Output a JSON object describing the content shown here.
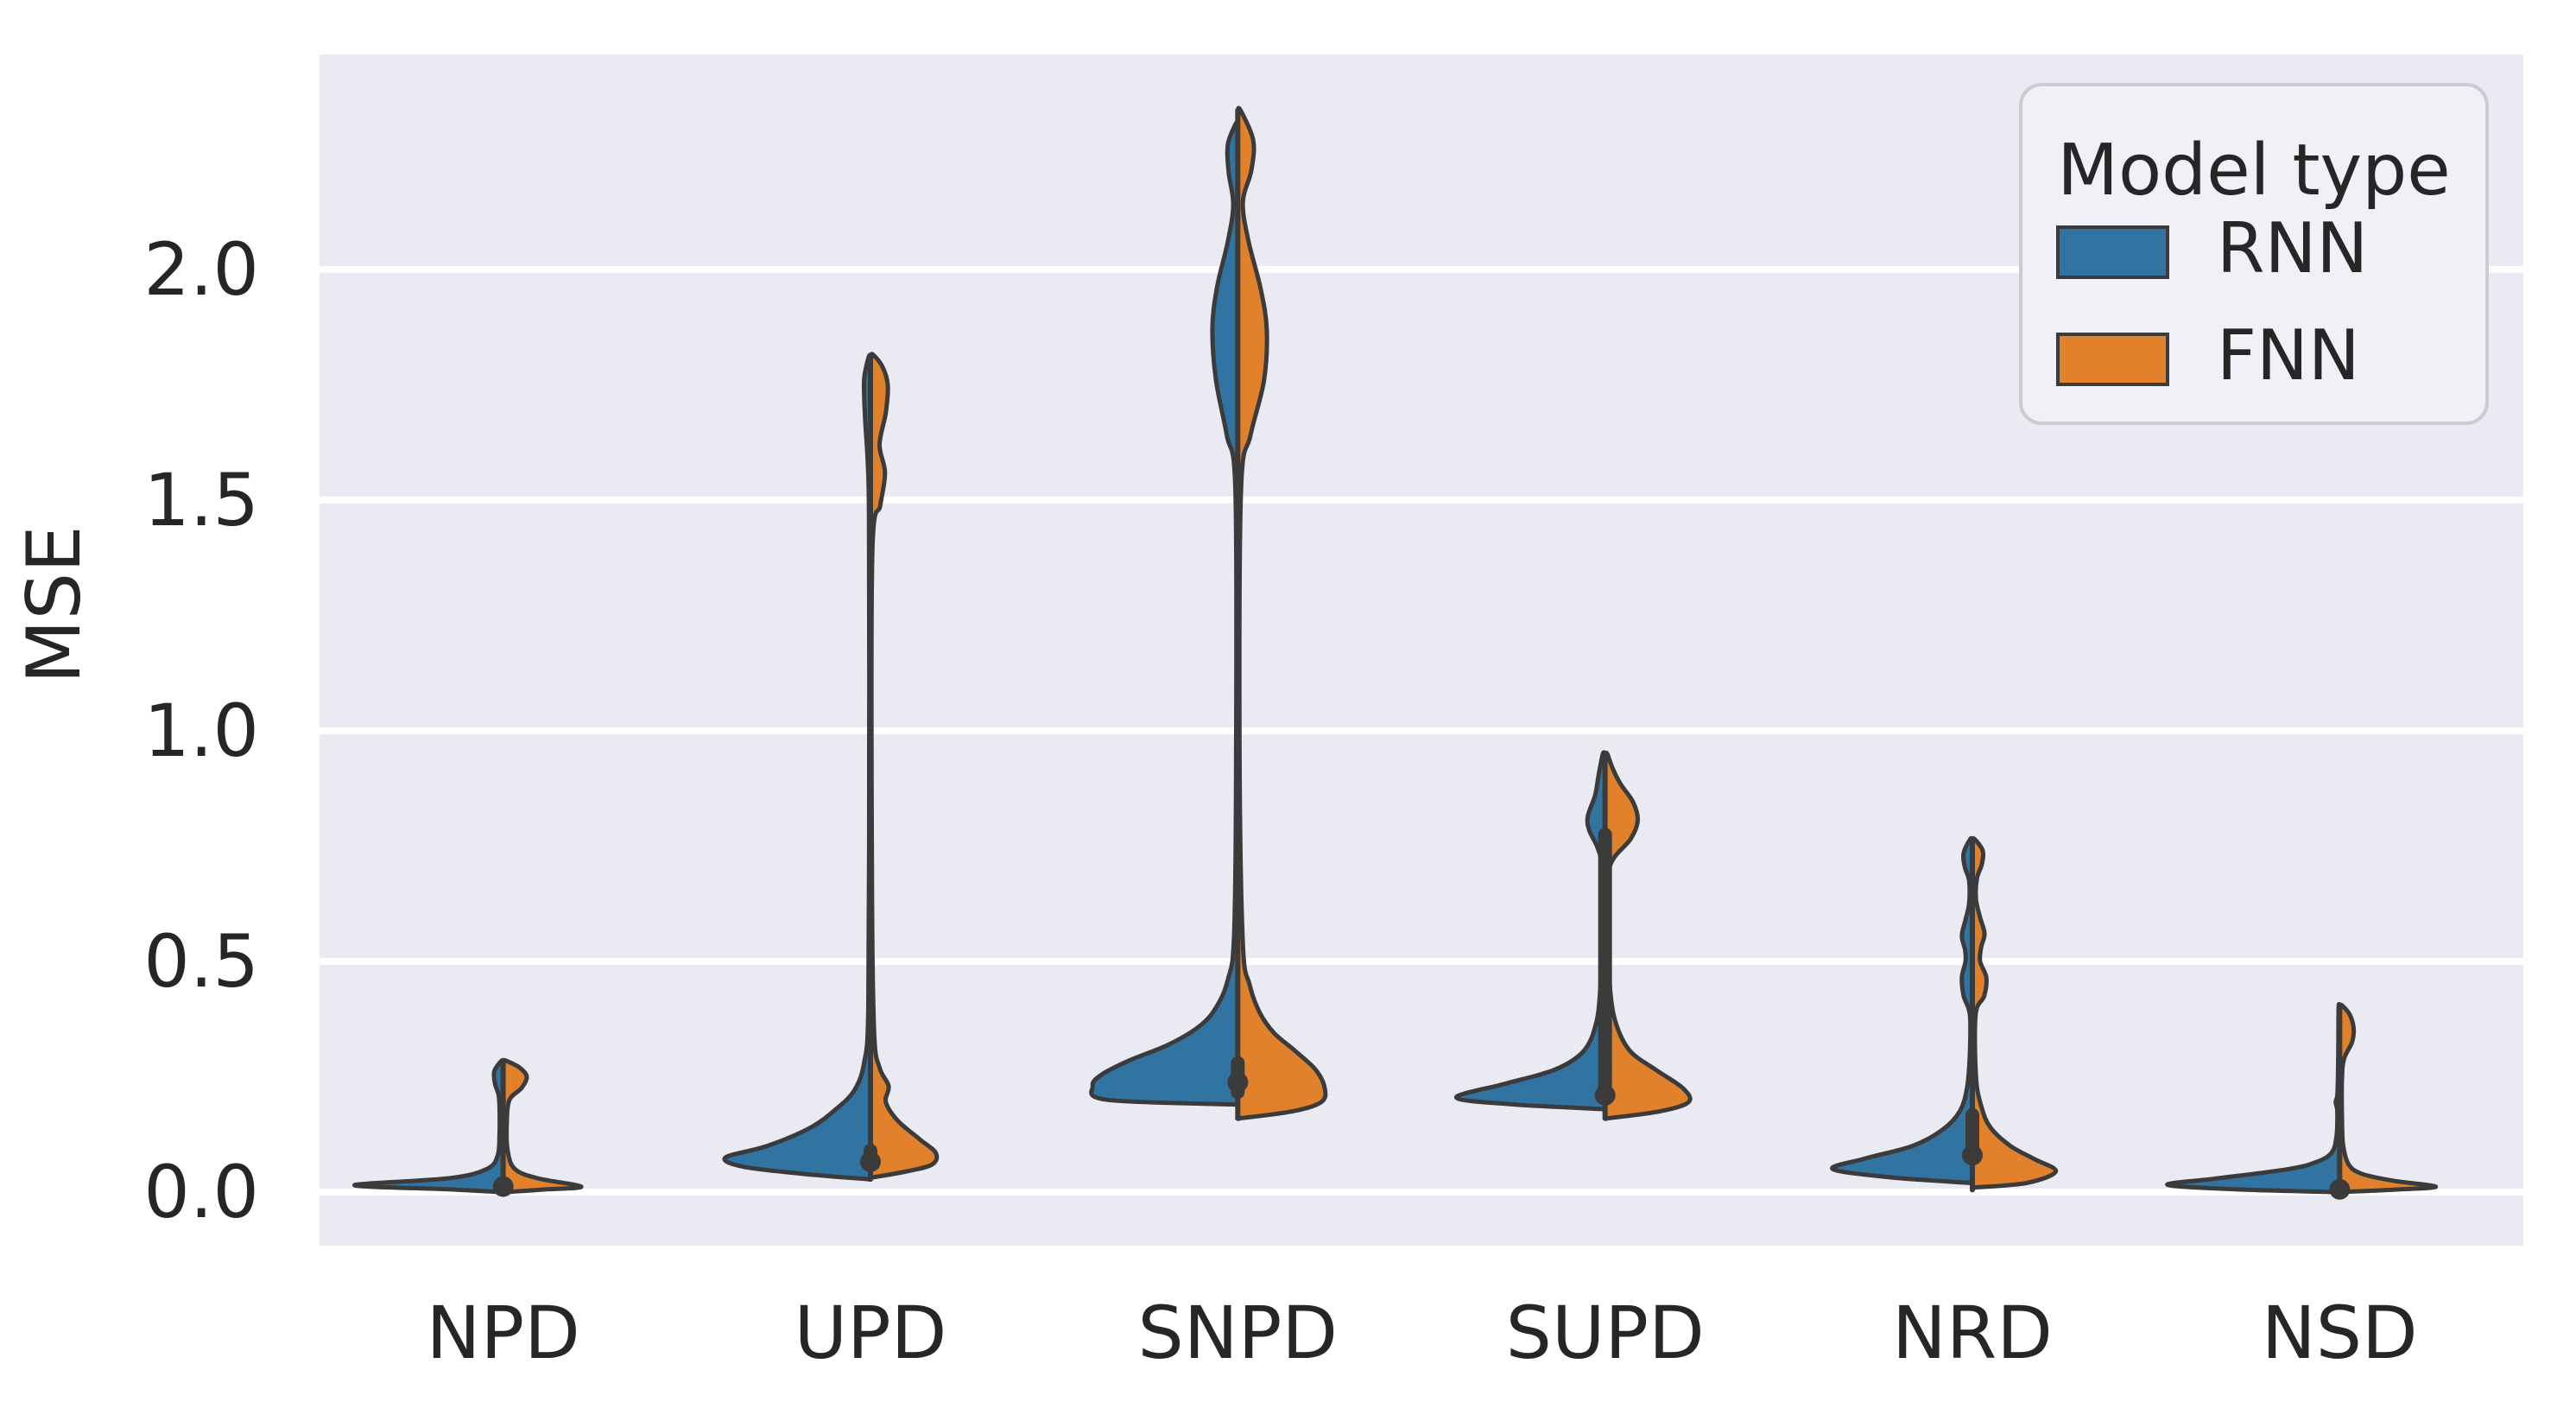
{
  "chart_data": {
    "type": "violin",
    "title": "",
    "xlabel": "",
    "ylabel": "MSE",
    "categories": [
      "NPD",
      "UPD",
      "SNPD",
      "SUPD",
      "NRD",
      "NSD"
    ],
    "ytick_values": [
      0.0,
      0.5,
      1.0,
      1.5,
      2.0
    ],
    "ytick_labels": [
      "0.0",
      "0.5",
      "1.0",
      "1.5",
      "2.0"
    ],
    "ylim": [
      -0.116,
      2.466
    ],
    "grid": true,
    "legend": {
      "title": "Model type",
      "position": "upper right",
      "entries": [
        {
          "label": "RNN",
          "color": "#3274a1"
        },
        {
          "label": "FNN",
          "color": "#e1812c"
        }
      ]
    },
    "series": [
      {
        "name": "RNN",
        "side": "left",
        "color": "#3274a1"
      },
      {
        "name": "FNN",
        "side": "right",
        "color": "#e1812c"
      }
    ],
    "colors": {
      "rnn": "#3274a1",
      "fnn": "#e1812c",
      "edge": "#3b3b3b",
      "axes_background": "#eaeaf2",
      "grid": "#ffffff",
      "text": "#262626",
      "legend_face": "#f0f0f6",
      "legend_border": "#cccccc",
      "figure_background": "#ffffff"
    },
    "violins": [
      {
        "category": "NPD",
        "rnn_profile": [
          [
            0.0,
            0.01
          ],
          [
            0.006,
            0.3
          ],
          [
            0.015,
            0.82
          ],
          [
            0.03,
            0.3
          ],
          [
            0.05,
            0.09
          ],
          [
            0.08,
            0.03
          ],
          [
            0.13,
            0.02
          ],
          [
            0.18,
            0.02
          ],
          [
            0.21,
            0.025
          ],
          [
            0.235,
            0.045
          ],
          [
            0.26,
            0.05
          ],
          [
            0.275,
            0.03
          ],
          [
            0.285,
            0.008
          ]
        ],
        "fnn_profile": [
          [
            0.0,
            0.01
          ],
          [
            0.006,
            0.24
          ],
          [
            0.012,
            0.43
          ],
          [
            0.03,
            0.19
          ],
          [
            0.05,
            0.065
          ],
          [
            0.09,
            0.025
          ],
          [
            0.15,
            0.02
          ],
          [
            0.2,
            0.035
          ],
          [
            0.225,
            0.1
          ],
          [
            0.25,
            0.13
          ],
          [
            0.27,
            0.09
          ],
          [
            0.285,
            0.015
          ]
        ],
        "whisker": [
          0.0,
          0.285
        ],
        "box": [
          0.004,
          0.035
        ],
        "median": 0.012
      },
      {
        "category": "UPD",
        "rnn_profile": [
          [
            0.028,
            0.012
          ],
          [
            0.04,
            0.38
          ],
          [
            0.055,
            0.7
          ],
          [
            0.075,
            0.8
          ],
          [
            0.1,
            0.57
          ],
          [
            0.14,
            0.33
          ],
          [
            0.18,
            0.19
          ],
          [
            0.22,
            0.09
          ],
          [
            0.28,
            0.035
          ],
          [
            0.4,
            0.012
          ],
          [
            0.9,
            0.007
          ],
          [
            1.45,
            0.008
          ],
          [
            1.58,
            0.015
          ],
          [
            1.68,
            0.03
          ],
          [
            1.76,
            0.035
          ],
          [
            1.81,
            0.01
          ]
        ],
        "fnn_profile": [
          [
            0.032,
            0.012
          ],
          [
            0.045,
            0.2
          ],
          [
            0.06,
            0.34
          ],
          [
            0.085,
            0.36
          ],
          [
            0.115,
            0.27
          ],
          [
            0.155,
            0.15
          ],
          [
            0.195,
            0.085
          ],
          [
            0.23,
            0.1
          ],
          [
            0.27,
            0.05
          ],
          [
            0.35,
            0.02
          ],
          [
            0.7,
            0.008
          ],
          [
            1.38,
            0.01
          ],
          [
            1.49,
            0.055
          ],
          [
            1.56,
            0.08
          ],
          [
            1.62,
            0.05
          ],
          [
            1.69,
            0.085
          ],
          [
            1.75,
            0.095
          ],
          [
            1.79,
            0.065
          ],
          [
            1.815,
            0.015
          ]
        ],
        "whisker": [
          0.028,
          1.81
        ],
        "box": [
          0.048,
          0.105
        ],
        "median": 0.066
      },
      {
        "category": "SNPD",
        "rnn_profile": [
          [
            0.19,
            0.012
          ],
          [
            0.2,
            0.72
          ],
          [
            0.23,
            0.8
          ],
          [
            0.255,
            0.75
          ],
          [
            0.285,
            0.6
          ],
          [
            0.32,
            0.38
          ],
          [
            0.36,
            0.21
          ],
          [
            0.4,
            0.12
          ],
          [
            0.46,
            0.055
          ],
          [
            0.56,
            0.02
          ],
          [
            0.95,
            0.009
          ],
          [
            1.52,
            0.013
          ],
          [
            1.64,
            0.06
          ],
          [
            1.76,
            0.12
          ],
          [
            1.87,
            0.14
          ],
          [
            1.96,
            0.115
          ],
          [
            2.06,
            0.055
          ],
          [
            2.14,
            0.025
          ],
          [
            2.21,
            0.05
          ],
          [
            2.27,
            0.055
          ],
          [
            2.315,
            0.012
          ]
        ],
        "fnn_profile": [
          [
            0.16,
            0.012
          ],
          [
            0.175,
            0.3
          ],
          [
            0.195,
            0.46
          ],
          [
            0.225,
            0.48
          ],
          [
            0.265,
            0.43
          ],
          [
            0.305,
            0.32
          ],
          [
            0.345,
            0.2
          ],
          [
            0.39,
            0.12
          ],
          [
            0.45,
            0.065
          ],
          [
            0.54,
            0.028
          ],
          [
            0.95,
            0.01
          ],
          [
            1.52,
            0.018
          ],
          [
            1.64,
            0.07
          ],
          [
            1.76,
            0.145
          ],
          [
            1.87,
            0.16
          ],
          [
            1.96,
            0.125
          ],
          [
            2.06,
            0.06
          ],
          [
            2.145,
            0.028
          ],
          [
            2.215,
            0.075
          ],
          [
            2.28,
            0.085
          ],
          [
            2.345,
            0.015
          ]
        ],
        "whisker": [
          0.16,
          2.345
        ],
        "box": [
          0.202,
          0.295
        ],
        "median": 0.238
      },
      {
        "category": "SUPD",
        "rnn_profile": [
          [
            0.18,
            0.012
          ],
          [
            0.19,
            0.5
          ],
          [
            0.205,
            0.82
          ],
          [
            0.235,
            0.55
          ],
          [
            0.265,
            0.28
          ],
          [
            0.305,
            0.12
          ],
          [
            0.365,
            0.05
          ],
          [
            0.45,
            0.025
          ],
          [
            0.58,
            0.015
          ],
          [
            0.7,
            0.015
          ],
          [
            0.745,
            0.04
          ],
          [
            0.785,
            0.088
          ],
          [
            0.815,
            0.095
          ],
          [
            0.86,
            0.055
          ],
          [
            0.905,
            0.035
          ],
          [
            0.95,
            0.012
          ]
        ],
        "fnn_profile": [
          [
            0.16,
            0.012
          ],
          [
            0.175,
            0.3
          ],
          [
            0.195,
            0.46
          ],
          [
            0.225,
            0.43
          ],
          [
            0.265,
            0.28
          ],
          [
            0.305,
            0.14
          ],
          [
            0.36,
            0.065
          ],
          [
            0.43,
            0.03
          ],
          [
            0.56,
            0.015
          ],
          [
            0.685,
            0.02
          ],
          [
            0.725,
            0.05
          ],
          [
            0.765,
            0.14
          ],
          [
            0.805,
            0.18
          ],
          [
            0.845,
            0.155
          ],
          [
            0.885,
            0.085
          ],
          [
            0.92,
            0.04
          ],
          [
            0.95,
            0.012
          ]
        ],
        "whisker": [
          0.16,
          0.95
        ],
        "box": [
          0.205,
          0.79
        ],
        "median": 0.21
      },
      {
        "category": "NRD",
        "rnn_profile": [
          [
            0.02,
            0.012
          ],
          [
            0.032,
            0.45
          ],
          [
            0.05,
            0.77
          ],
          [
            0.072,
            0.6
          ],
          [
            0.1,
            0.33
          ],
          [
            0.135,
            0.165
          ],
          [
            0.175,
            0.07
          ],
          [
            0.225,
            0.03
          ],
          [
            0.3,
            0.014
          ],
          [
            0.385,
            0.014
          ],
          [
            0.425,
            0.048
          ],
          [
            0.465,
            0.058
          ],
          [
            0.5,
            0.038
          ],
          [
            0.525,
            0.04
          ],
          [
            0.555,
            0.058
          ],
          [
            0.59,
            0.038
          ],
          [
            0.625,
            0.018
          ],
          [
            0.675,
            0.018
          ],
          [
            0.705,
            0.042
          ],
          [
            0.735,
            0.048
          ],
          [
            0.765,
            0.012
          ]
        ],
        "fnn_profile": [
          [
            0.01,
            0.012
          ],
          [
            0.02,
            0.3
          ],
          [
            0.045,
            0.46
          ],
          [
            0.072,
            0.34
          ],
          [
            0.1,
            0.21
          ],
          [
            0.14,
            0.1
          ],
          [
            0.185,
            0.05
          ],
          [
            0.25,
            0.02
          ],
          [
            0.385,
            0.018
          ],
          [
            0.425,
            0.065
          ],
          [
            0.465,
            0.077
          ],
          [
            0.5,
            0.043
          ],
          [
            0.53,
            0.048
          ],
          [
            0.56,
            0.067
          ],
          [
            0.595,
            0.043
          ],
          [
            0.635,
            0.02
          ],
          [
            0.68,
            0.025
          ],
          [
            0.71,
            0.052
          ],
          [
            0.74,
            0.057
          ],
          [
            0.765,
            0.013
          ]
        ],
        "whisker": [
          0.005,
          0.765
        ],
        "box": [
          0.072,
          0.182
        ],
        "median": 0.08
      },
      {
        "category": "NSD",
        "rnn_profile": [
          [
            0.0,
            0.01
          ],
          [
            0.006,
            0.58
          ],
          [
            0.016,
            0.95
          ],
          [
            0.03,
            0.67
          ],
          [
            0.05,
            0.28
          ],
          [
            0.065,
            0.13
          ],
          [
            0.085,
            0.045
          ],
          [
            0.12,
            0.018
          ],
          [
            0.175,
            0.013
          ],
          [
            0.195,
            0.022
          ],
          [
            0.215,
            0.012
          ],
          [
            0.3,
            0.008
          ],
          [
            0.4,
            0.006
          ]
        ],
        "fnn_profile": [
          [
            0.0,
            0.01
          ],
          [
            0.006,
            0.34
          ],
          [
            0.012,
            0.53
          ],
          [
            0.025,
            0.29
          ],
          [
            0.04,
            0.12
          ],
          [
            0.06,
            0.05
          ],
          [
            0.1,
            0.02
          ],
          [
            0.155,
            0.013
          ],
          [
            0.25,
            0.013
          ],
          [
            0.29,
            0.025
          ],
          [
            0.325,
            0.068
          ],
          [
            0.355,
            0.077
          ],
          [
            0.385,
            0.055
          ],
          [
            0.405,
            0.012
          ]
        ],
        "whisker": [
          0.0,
          0.405
        ],
        "box": [
          0.002,
          0.022
        ],
        "median": 0.006
      }
    ]
  }
}
